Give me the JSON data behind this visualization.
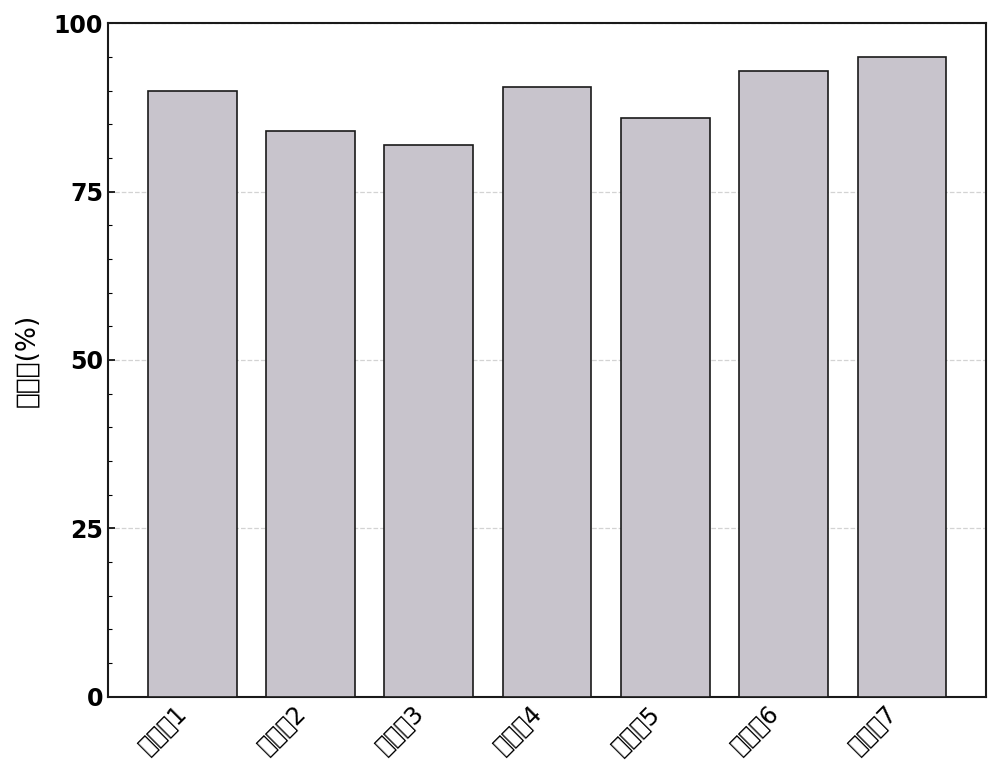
{
  "categories": [
    "实施例1",
    "实施例2",
    "实施例3",
    "实施例4",
    "实施例5",
    "实施例6",
    "实施例7"
  ],
  "values": [
    90.0,
    84.0,
    82.0,
    90.5,
    86.0,
    93.0,
    95.0
  ],
  "bar_color": "#c8c4cc",
  "bar_edgecolor": "#1a1a1a",
  "ylabel": "去除率(%)",
  "ylim": [
    0,
    100
  ],
  "yticks": [
    0,
    25,
    50,
    75,
    100
  ],
  "grid_color": "#c8c8c8",
  "grid_linestyle": "--",
  "grid_alpha": 0.8,
  "bar_width": 0.75,
  "tick_fontsize": 17,
  "ylabel_fontsize": 19,
  "xlabel_rotation": 45,
  "background_color": "#ffffff",
  "spine_color": "#1a1a1a"
}
